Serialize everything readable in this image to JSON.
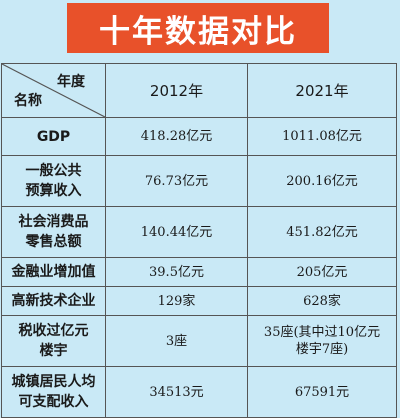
{
  "title": "十年数据对比",
  "table": {
    "header": {
      "corner_top": "年度",
      "corner_bottom": "名称",
      "years": [
        "2012年",
        "2021年"
      ]
    },
    "rows": [
      {
        "name": [
          "GDP"
        ],
        "v2012": [
          "418.28亿元"
        ],
        "v2021": [
          "1011.08亿元"
        ]
      },
      {
        "name": [
          "一般公共",
          "预算收入"
        ],
        "v2012": [
          "76.73亿元"
        ],
        "v2021": [
          "200.16亿元"
        ]
      },
      {
        "name": [
          "社会消费品",
          "零售总额"
        ],
        "v2012": [
          "140.44亿元"
        ],
        "v2021": [
          "451.82亿元"
        ]
      },
      {
        "name": [
          "金融业增加值"
        ],
        "v2012": [
          "39.5亿元"
        ],
        "v2021": [
          "205亿元"
        ]
      },
      {
        "name": [
          "高新技术企业"
        ],
        "v2012": [
          "129家"
        ],
        "v2021": [
          "628家"
        ]
      },
      {
        "name": [
          "税收过亿元",
          "楼宇"
        ],
        "v2012": [
          "3座"
        ],
        "v2021": [
          "35座(其中过10亿元",
          "楼宇7座)"
        ]
      },
      {
        "name": [
          "城镇居民人均",
          "可支配收入"
        ],
        "v2012": [
          "34513元"
        ],
        "v2021": [
          "67591元"
        ]
      }
    ]
  }
}
